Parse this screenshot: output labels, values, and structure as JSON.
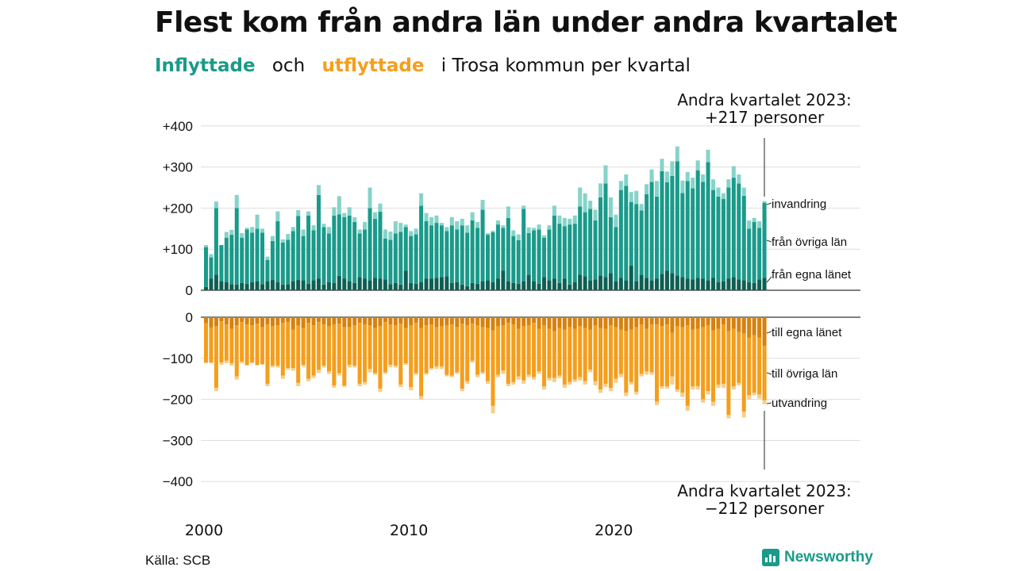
{
  "title": "Flest kom från andra län under andra kvartalet",
  "subtitle": {
    "inflyttade": "Inflyttade",
    "och": "och",
    "utflyttade": "utflyttade",
    "rest": "i Trosa kommun  per  kvartal"
  },
  "source": "Källa: SCB",
  "brand": "Newsworthy",
  "colors": {
    "in_egna": "#0f5e53",
    "in_ovriga": "#1a9a8a",
    "in_invandring": "#86d3c9",
    "ut_egna": "#d6820f",
    "ut_ovriga": "#f59e1b",
    "ut_utvandring": "#f8cd8a"
  },
  "chart_data": {
    "type": "bar",
    "stacked": true,
    "x_axis": {
      "ticks": [
        "2000",
        "2010",
        "2020"
      ],
      "start": "2000 Q1",
      "end": "2023 Q2",
      "frequency": "quarterly"
    },
    "top_panel": {
      "ylim": [
        0,
        400
      ],
      "yticks": [
        "+400",
        "+300",
        "+200",
        "+100",
        "0"
      ],
      "annotation": [
        "Andra kvartalet 2023:",
        "+217 personer"
      ],
      "series": [
        {
          "name": "från egna länet",
          "values": [
            8,
            28,
            38,
            22,
            20,
            15,
            14,
            18,
            16,
            20,
            22,
            15,
            22,
            25,
            20,
            14,
            15,
            22,
            25,
            24,
            16,
            24,
            28,
            14,
            20,
            18,
            35,
            28,
            22,
            18,
            32,
            28,
            24,
            30,
            28,
            26,
            15,
            18,
            14,
            48,
            18,
            16,
            20,
            28,
            28,
            30,
            32,
            34,
            18,
            20,
            14,
            10,
            18,
            16,
            22,
            24,
            20,
            28,
            48,
            22,
            18,
            16,
            22,
            38,
            22,
            16,
            32,
            24,
            28,
            18,
            28,
            14,
            20,
            38,
            34,
            24,
            26,
            36,
            32,
            42,
            22,
            30,
            24,
            60,
            22,
            38,
            30,
            24,
            28,
            40,
            48,
            42,
            36,
            32,
            28,
            26,
            30,
            28,
            24,
            30,
            20,
            22,
            28,
            32,
            26,
            24,
            20,
            18,
            26,
            30
          ]
        },
        {
          "name": "från övriga län",
          "values": [
            97,
            52,
            162,
            88,
            108,
            120,
            186,
            110,
            132,
            120,
            128,
            125,
            52,
            95,
            148,
            102,
            108,
            122,
            156,
            108,
            166,
            122,
            204,
            140,
            118,
            164,
            150,
            150,
            160,
            148,
            106,
            120,
            176,
            144,
            163,
            100,
            108,
            120,
            128,
            106,
            114,
            120,
            186,
            140,
            130,
            134,
            126,
            110,
            140,
            128,
            144,
            130,
            152,
            136,
            174,
            111,
            121,
            132,
            104,
            154,
            114,
            106,
            176,
            101,
            124,
            132,
            96,
            124,
            154,
            144,
            128,
            146,
            142,
            166,
            156,
            174,
            144,
            190,
            228,
            136,
            132,
            214,
            230,
            155,
            188,
            156,
            204,
            240,
            200,
            250,
            215,
            236,
            278,
            205,
            238,
            222,
            262,
            236,
            288,
            214,
            208,
            200,
            222,
            242,
            234,
            206,
            130,
            148,
            126,
            183
          ]
        },
        {
          "name": "invandring",
          "values": [
            5,
            8,
            16,
            0,
            14,
            12,
            32,
            11,
            4,
            14,
            34,
            10,
            8,
            12,
            24,
            8,
            14,
            10,
            14,
            16,
            10,
            12,
            24,
            8,
            16,
            20,
            44,
            10,
            20,
            12,
            10,
            18,
            50,
            16,
            20,
            22,
            20,
            30,
            22,
            6,
            12,
            14,
            30,
            20,
            20,
            18,
            6,
            10,
            20,
            20,
            16,
            18,
            20,
            14,
            24,
            4,
            4,
            10,
            6,
            28,
            14,
            14,
            8,
            14,
            6,
            12,
            6,
            10,
            24,
            20,
            20,
            14,
            20,
            46,
            46,
            20,
            26,
            34,
            44,
            48,
            30,
            22,
            28,
            24,
            32,
            16,
            24,
            30,
            38,
            30,
            26,
            36,
            36,
            30,
            22,
            26,
            24,
            18,
            30,
            26,
            22,
            14,
            20,
            28,
            22,
            20,
            20,
            10,
            16,
            4
          ]
        }
      ]
    },
    "bottom_panel": {
      "ylim": [
        -400,
        0
      ],
      "yticks": [
        "0",
        "−100",
        "−200",
        "−300",
        "−400"
      ],
      "annotation": [
        "Andra kvartalet 2023:",
        "−212 personer"
      ],
      "series": [
        {
          "name": "till egna länet",
          "values": [
            -15,
            -25,
            -22,
            -10,
            -18,
            -28,
            -20,
            -12,
            -18,
            -20,
            -16,
            -24,
            -18,
            -22,
            -20,
            -14,
            -12,
            -30,
            -20,
            -26,
            -14,
            -20,
            -12,
            -18,
            -22,
            -18,
            -16,
            -24,
            -24,
            -20,
            -14,
            -18,
            -20,
            -26,
            -22,
            -12,
            -18,
            -20,
            -16,
            -26,
            -20,
            -14,
            -26,
            -20,
            -18,
            -24,
            -22,
            -20,
            -18,
            -24,
            -16,
            -20,
            -16,
            -20,
            -24,
            -26,
            -32,
            -22,
            -20,
            -14,
            -18,
            -28,
            -22,
            -20,
            -14,
            -28,
            -20,
            -28,
            -34,
            -26,
            -30,
            -24,
            -28,
            -22,
            -26,
            -30,
            -20,
            -26,
            -28,
            -20,
            -24,
            -30,
            -34,
            -30,
            -24,
            -18,
            -28,
            -18,
            -18,
            -22,
            -18,
            -38,
            -22,
            -24,
            -20,
            -30,
            -28,
            -24,
            -20,
            -32,
            -28,
            -18,
            -34,
            -28,
            -36,
            -40,
            -50,
            -44,
            -50,
            -70
          ]
        },
        {
          "name": "till övriga län",
          "values": [
            -95,
            -85,
            -150,
            -100,
            -88,
            -84,
            -124,
            -96,
            -98,
            -90,
            -100,
            -90,
            -144,
            -96,
            -98,
            -128,
            -112,
            -94,
            -140,
            -90,
            -136,
            -122,
            -116,
            -100,
            -110,
            -148,
            -120,
            -142,
            -92,
            -98,
            -148,
            -140,
            -106,
            -110,
            -152,
            -122,
            -98,
            -98,
            -148,
            -86,
            -150,
            -122,
            -166,
            -116,
            -106,
            -96,
            -98,
            -120,
            -124,
            -110,
            -158,
            -136,
            -90,
            -120,
            -110,
            -130,
            -184,
            -118,
            -110,
            -148,
            -140,
            -116,
            -132,
            -120,
            -132,
            -104,
            -148,
            -120,
            -114,
            -116,
            -134,
            -134,
            -124,
            -124,
            -130,
            -98,
            -136,
            -150,
            -134,
            -152,
            -126,
            -108,
            -150,
            -128,
            -158,
            -120,
            -104,
            -116,
            -188,
            -146,
            -150,
            -106,
            -154,
            -160,
            -196,
            -138,
            -140,
            -176,
            -160,
            -174,
            -136,
            -144,
            -204,
            -140,
            -124,
            -190,
            -140,
            -140,
            -138,
            -132
          ]
        },
        {
          "name": "utvandring",
          "values": [
            -2,
            -2,
            -8,
            -6,
            -6,
            -6,
            -8,
            -4,
            -2,
            -2,
            -2,
            -2,
            -6,
            -4,
            -4,
            -8,
            -4,
            -6,
            -8,
            -4,
            -6,
            -6,
            -8,
            -4,
            -6,
            -6,
            -6,
            -4,
            -6,
            -4,
            -6,
            -6,
            -8,
            -4,
            -8,
            -4,
            -6,
            -4,
            -6,
            -4,
            -8,
            -4,
            -8,
            -4,
            -4,
            -6,
            -6,
            -4,
            -4,
            -4,
            -6,
            -6,
            -4,
            -6,
            -4,
            -6,
            -18,
            -6,
            -8,
            -6,
            -6,
            -8,
            -8,
            -6,
            -6,
            -6,
            -8,
            -6,
            -10,
            -6,
            -8,
            -6,
            -6,
            -8,
            -8,
            -6,
            -10,
            -8,
            -8,
            -8,
            -10,
            -8,
            -8,
            -6,
            -6,
            -6,
            -8,
            -6,
            -8,
            -6,
            -6,
            -20,
            -6,
            -10,
            -12,
            -8,
            -8,
            -8,
            -8,
            -10,
            -8,
            -10,
            -8,
            -8,
            -6,
            -14,
            -10,
            -6,
            -10,
            -10
          ]
        }
      ]
    },
    "series_labels": {
      "top": [
        "invandring",
        "från övriga län",
        "från egna länet"
      ],
      "bottom": [
        "till egna länet",
        "till övriga län",
        "utvandring"
      ]
    }
  }
}
